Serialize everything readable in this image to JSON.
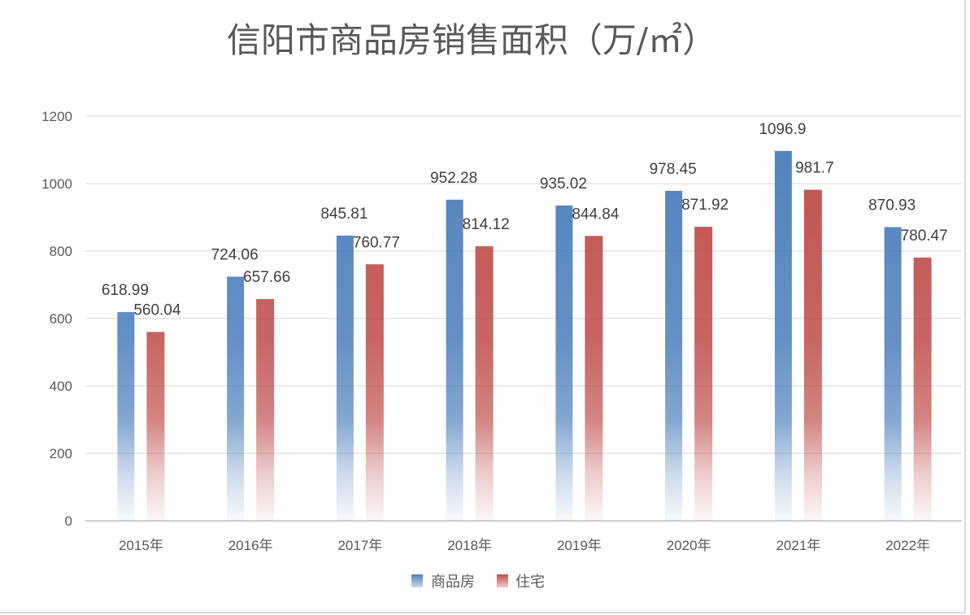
{
  "chart_data": {
    "type": "bar",
    "title": "信阳市商品房销售面积（万/㎡）",
    "categories": [
      "2015年",
      "2016年",
      "2017年",
      "2018年",
      "2019年",
      "2020年",
      "2021年",
      "2022年"
    ],
    "series": [
      {
        "name": "商品房",
        "color": "#4f81bd",
        "values": [
          618.99,
          724.06,
          845.81,
          952.28,
          935.02,
          978.45,
          1096.9,
          870.93
        ]
      },
      {
        "name": "住宅",
        "color": "#c0504d",
        "values": [
          560.04,
          657.66,
          760.77,
          814.12,
          844.84,
          871.92,
          981.7,
          780.47
        ]
      }
    ],
    "ylim": [
      0,
      1200
    ],
    "yticks": [
      0,
      200,
      400,
      600,
      800,
      1000,
      1200
    ],
    "grid": true,
    "legend": "bottom",
    "xlabel": "",
    "ylabel": ""
  }
}
